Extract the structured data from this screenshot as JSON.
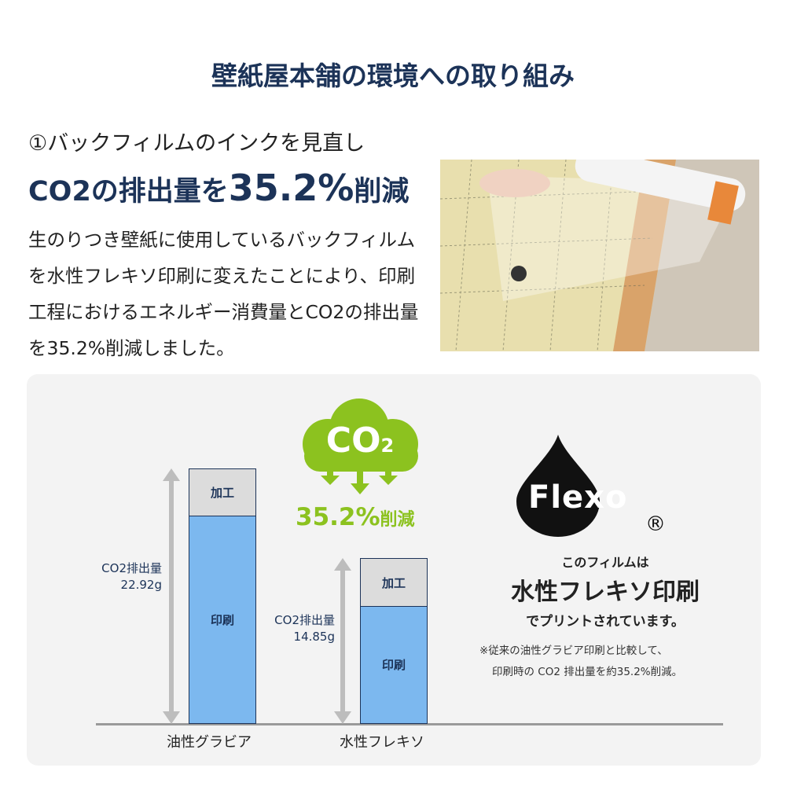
{
  "title": "壁紙屋本舗の環境への取り組み",
  "section": {
    "subtitle": "①バックフィルムのインクを見直し",
    "headline_prefix": "CO2の排出量を",
    "headline_value": "35.2%",
    "headline_suffix": "削減",
    "body": "生のりつき壁紙に使用しているバックフィルムを水性フレキソ印刷に変えたことにより、印刷工程におけるエネルギー消費量とCO2の排出量を35.2%削減しました。"
  },
  "cloud": {
    "label": "CO",
    "subscript": "2",
    "reduction": "35.2%",
    "reduction_suffix": "削減",
    "color": "#8cc21f"
  },
  "flexo": {
    "logo": "Flexo",
    "registered": "®",
    "line1": "このフィルムは",
    "line2": "水性フレキソ印刷",
    "line3": "でプリントされています。",
    "note1": "※従来の油性グラビア印刷と比較して、",
    "note2": "印刷時の CO2 排出量を約35.2%削減。"
  },
  "chart_data": {
    "type": "bar",
    "stacked": true,
    "categories": [
      "油性グラビア",
      "水性フレキソ"
    ],
    "series": [
      {
        "name": "印刷",
        "values": [
          18.7,
          10.6
        ],
        "color": "#7cb8ef"
      },
      {
        "name": "加工",
        "values": [
          4.22,
          4.25
        ],
        "color": "#dcdcdc"
      }
    ],
    "totals": [
      {
        "label": "CO2排出量",
        "value": "22.92g"
      },
      {
        "label": "CO2排出量",
        "value": "14.85g"
      }
    ],
    "ylim": [
      0,
      22.92
    ]
  }
}
